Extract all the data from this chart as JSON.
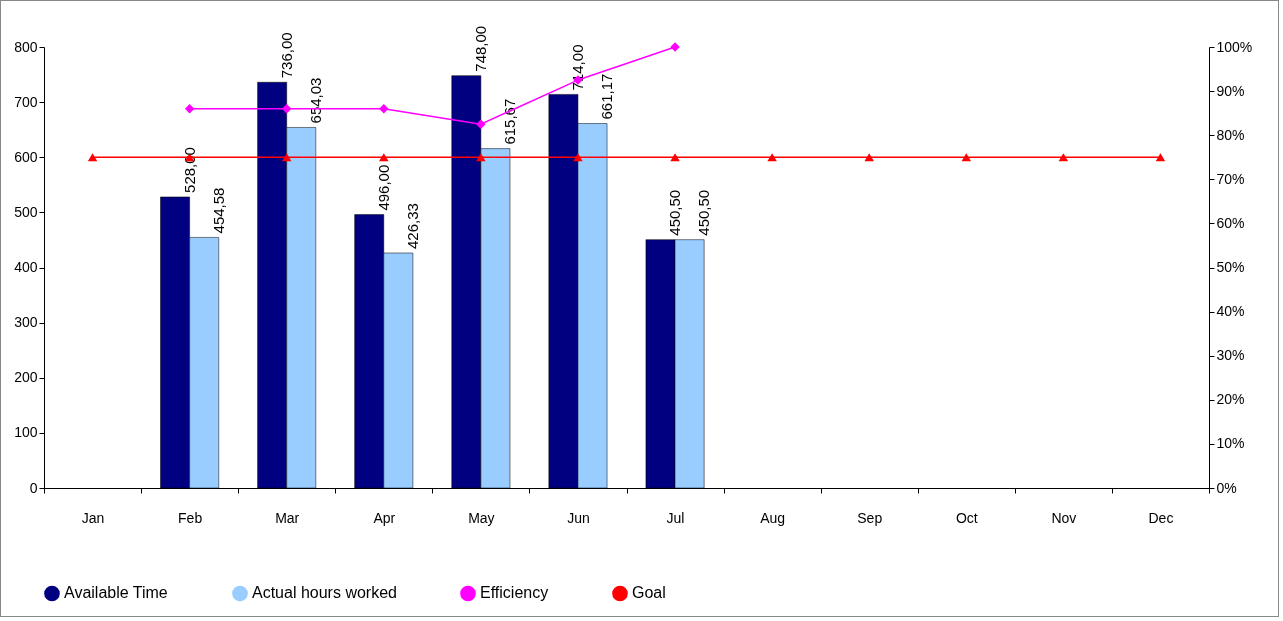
{
  "chart_data": {
    "type": "bar",
    "categories": [
      "Jan",
      "Feb",
      "Mar",
      "Apr",
      "May",
      "Jun",
      "Jul",
      "Aug",
      "Sep",
      "Oct",
      "Nov",
      "Dec"
    ],
    "series": [
      {
        "name": "Available Time",
        "color": "#000080",
        "values": [
          null,
          528,
          736,
          496,
          748,
          714,
          450.5,
          null,
          null,
          null,
          null,
          null
        ],
        "value_labels": [
          null,
          "528,00",
          "736,00",
          "496,00",
          "748,00",
          "714,00",
          "450,50",
          null,
          null,
          null,
          null,
          null
        ]
      },
      {
        "name": "Actual hours worked",
        "color": "#99ccff",
        "values": [
          null,
          454.58,
          654.03,
          426.33,
          615.67,
          661.17,
          450.5,
          null,
          null,
          null,
          null,
          null
        ],
        "value_labels": [
          null,
          "454,58",
          "654,03",
          "426,33",
          "615,67",
          "661,17",
          "450,50",
          null,
          null,
          null,
          null,
          null
        ]
      },
      {
        "name": "Efficiency",
        "type": "line",
        "axis": "y2",
        "marker": "diamond",
        "line_style": "solid",
        "color": "#ff00ff",
        "values": [
          null,
          86,
          86,
          86,
          82.5,
          92.5,
          100,
          null,
          null,
          null,
          null,
          null
        ]
      },
      {
        "name": "Goal",
        "type": "line",
        "axis": "y2",
        "marker": "triangle",
        "line_style": "solid",
        "color": "#ff0000",
        "values": [
          75,
          75,
          75,
          75,
          75,
          75,
          75,
          75,
          75,
          75,
          75,
          75
        ]
      }
    ],
    "ylim": [
      0,
      800
    ],
    "yticks": [
      0,
      100,
      200,
      300,
      400,
      500,
      600,
      700,
      800
    ],
    "y2lim": [
      0,
      100
    ],
    "y2ticks": [
      {
        "value": 0,
        "label": "0%"
      },
      {
        "value": 10,
        "label": "10%"
      },
      {
        "value": 20,
        "label": "20%"
      },
      {
        "value": 30,
        "label": "30%"
      },
      {
        "value": 40,
        "label": "40%"
      },
      {
        "value": 50,
        "label": "50%"
      },
      {
        "value": 60,
        "label": "60%"
      },
      {
        "value": 70,
        "label": "70%"
      },
      {
        "value": 80,
        "label": "80%"
      },
      {
        "value": 90,
        "label": "90%"
      },
      {
        "value": 100,
        "label": "100%"
      }
    ],
    "grid": false,
    "legend": "bottom"
  }
}
